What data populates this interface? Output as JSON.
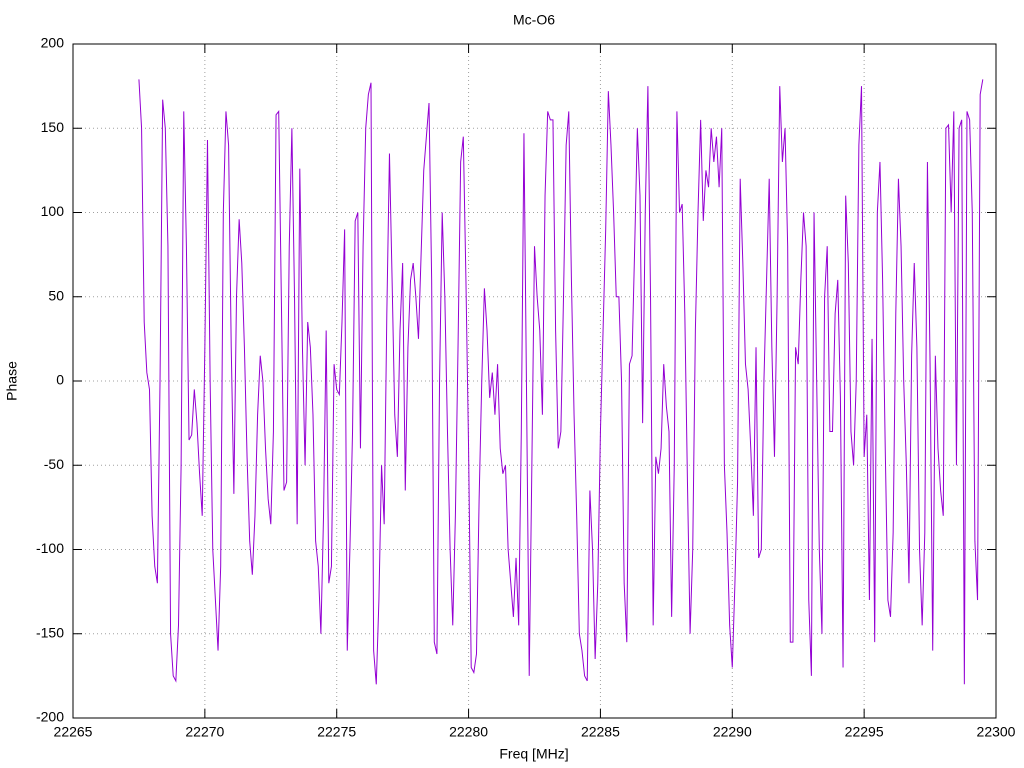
{
  "chart_data": {
    "type": "line",
    "title": "Mc-O6",
    "x_label": "Freq [MHz]",
    "y_label": "Phase",
    "color": "#9400d3",
    "grid": true,
    "xlim": [
      22265,
      22300
    ],
    "xticks": [
      22265,
      22270,
      22275,
      22280,
      22285,
      22290,
      22295,
      22300
    ],
    "ylim": [
      -200,
      200
    ],
    "yticks": [
      -200,
      -150,
      -100,
      -50,
      0,
      50,
      100,
      150,
      200
    ],
    "x": [
      22267.5,
      22267.6,
      22267.7,
      22267.8,
      22267.9,
      22268,
      22268.1,
      22268.2,
      22268.3,
      22268.4,
      22268.5,
      22268.6,
      22268.7,
      22268.8,
      22268.9,
      22269,
      22269.1,
      22269.2,
      22269.3,
      22269.4,
      22269.5,
      22269.6,
      22269.7,
      22269.8,
      22269.9,
      22270,
      22270.1,
      22270.2,
      22270.3,
      22270.4,
      22270.5,
      22270.6,
      22270.7,
      22270.8,
      22270.9,
      22271,
      22271.1,
      22271.2,
      22271.3,
      22271.4,
      22271.5,
      22271.6,
      22271.7,
      22271.8,
      22271.9,
      22272,
      22272.1,
      22272.2,
      22272.3,
      22272.4,
      22272.5,
      22272.6,
      22272.7,
      22272.8,
      22272.9,
      22273,
      22273.1,
      22273.2,
      22273.3,
      22273.4,
      22273.5,
      22273.6,
      22273.7,
      22273.8,
      22273.9,
      22274,
      22274.1,
      22274.2,
      22274.3,
      22274.4,
      22274.5,
      22274.6,
      22274.7,
      22274.8,
      22274.9,
      22275,
      22275.1,
      22275.2,
      22275.3,
      22275.4,
      22275.5,
      22275.6,
      22275.7,
      22275.8,
      22275.9,
      22276,
      22276.1,
      22276.2,
      22276.3,
      22276.4,
      22276.5,
      22276.6,
      22276.7,
      22276.8,
      22276.9,
      22277,
      22277.1,
      22277.2,
      22277.3,
      22277.4,
      22277.5,
      22277.6,
      22277.7,
      22277.8,
      22277.9,
      22278,
      22278.1,
      22278.2,
      22278.3,
      22278.4,
      22278.5,
      22278.6,
      22278.7,
      22278.8,
      22278.9,
      22279,
      22279.1,
      22279.2,
      22279.3,
      22279.4,
      22279.5,
      22279.6,
      22279.7,
      22279.8,
      22279.9,
      22280,
      22280.1,
      22280.2,
      22280.3,
      22280.4,
      22280.5,
      22280.6,
      22280.7,
      22280.8,
      22280.9,
      22281,
      22281.1,
      22281.2,
      22281.3,
      22281.4,
      22281.5,
      22281.6,
      22281.7,
      22281.8,
      22281.9,
      22282,
      22282.1,
      22282.2,
      22282.3,
      22282.4,
      22282.5,
      22282.6,
      22282.7,
      22282.8,
      22282.9,
      22283,
      22283.1,
      22283.2,
      22283.3,
      22283.4,
      22283.5,
      22283.6,
      22283.7,
      22283.8,
      22283.9,
      22284,
      22284.1,
      22284.2,
      22284.3,
      22284.4,
      22284.5,
      22284.6,
      22284.7,
      22284.8,
      22284.9,
      22285,
      22285.1,
      22285.2,
      22285.3,
      22285.4,
      22285.5,
      22285.6,
      22285.7,
      22285.8,
      22285.9,
      22286,
      22286.1,
      22286.2,
      22286.3,
      22286.4,
      22286.5,
      22286.6,
      22286.7,
      22286.8,
      22286.9,
      22287,
      22287.1,
      22287.2,
      22287.3,
      22287.4,
      22287.5,
      22287.6,
      22287.7,
      22287.8,
      22287.9,
      22288,
      22288.1,
      22288.2,
      22288.3,
      22288.4,
      22288.5,
      22288.6,
      22288.7,
      22288.8,
      22288.9,
      22289,
      22289.1,
      22289.2,
      22289.3,
      22289.4,
      22289.5,
      22289.6,
      22289.7,
      22289.8,
      22289.9,
      22290,
      22290.1,
      22290.2,
      22290.3,
      22290.4,
      22290.5,
      22290.6,
      22290.7,
      22290.8,
      22290.9,
      22291,
      22291.1,
      22291.2,
      22291.3,
      22291.4,
      22291.5,
      22291.6,
      22291.7,
      22291.8,
      22291.9,
      22292,
      22292.1,
      22292.2,
      22292.3,
      22292.4,
      22292.5,
      22292.6,
      22292.7,
      22292.8,
      22292.9,
      22293,
      22293.1,
      22293.2,
      22293.3,
      22293.4,
      22293.5,
      22293.6,
      22293.7,
      22293.8,
      22293.9,
      22294,
      22294.1,
      22294.2,
      22294.3,
      22294.4,
      22294.5,
      22294.6,
      22294.7,
      22294.8,
      22294.9,
      22295,
      22295.1,
      22295.2,
      22295.3,
      22295.4,
      22295.5,
      22295.6,
      22295.7,
      22295.8,
      22295.9,
      22296,
      22296.1,
      22296.2,
      22296.3,
      22296.4,
      22296.5,
      22296.6,
      22296.7,
      22296.8,
      22296.9,
      22297,
      22297.1,
      22297.2,
      22297.3,
      22297.4,
      22297.5,
      22297.6,
      22297.7,
      22297.8,
      22297.9,
      22298,
      22298.1,
      22298.2,
      22298.3,
      22298.4,
      22298.5,
      22298.6,
      22298.7,
      22298.8,
      22298.9,
      22299,
      22299.1,
      22299.2,
      22299.3,
      22299.4,
      22299.5
    ],
    "values": [
      179,
      150,
      35,
      5,
      -5,
      -80,
      -110,
      -120,
      0,
      167,
      150,
      80,
      -150,
      -175,
      -178,
      -145,
      -50,
      160,
      80,
      -35,
      -32,
      -5,
      -25,
      -55,
      -80,
      20,
      143,
      0,
      -100,
      -130,
      -160,
      -110,
      100,
      160,
      140,
      20,
      -67,
      50,
      96,
      70,
      20,
      -45,
      -95,
      -115,
      -80,
      -20,
      15,
      0,
      -40,
      -70,
      -85,
      -30,
      158,
      160,
      50,
      -65,
      -60,
      80,
      150,
      50,
      -85,
      126,
      20,
      -50,
      35,
      20,
      -20,
      -95,
      -110,
      -150,
      -80,
      30,
      -120,
      -110,
      10,
      -5,
      -8,
      35,
      90,
      -160,
      -100,
      -30,
      95,
      100,
      -40,
      80,
      150,
      170,
      177,
      -160,
      -180,
      -130,
      -50,
      -85,
      40,
      135,
      60,
      -20,
      -45,
      30,
      70,
      -65,
      20,
      60,
      70,
      50,
      25,
      75,
      125,
      145,
      165,
      60,
      -155,
      -162,
      0,
      100,
      50,
      -30,
      -100,
      -145,
      -80,
      20,
      130,
      145,
      60,
      -40,
      -170,
      -173,
      -162,
      -70,
      0,
      55,
      30,
      -10,
      5,
      -20,
      10,
      -40,
      -55,
      -50,
      -100,
      -120,
      -140,
      -105,
      -145,
      -30,
      147,
      -10,
      -175,
      -50,
      80,
      50,
      30,
      -20,
      110,
      160,
      155,
      155,
      30,
      -40,
      -30,
      50,
      140,
      160,
      60,
      -20,
      -80,
      -150,
      -160,
      -175,
      -178,
      -65,
      -100,
      -165,
      -120,
      -30,
      30,
      90,
      172,
      140,
      100,
      50,
      50,
      0,
      -120,
      -155,
      10,
      15,
      80,
      150,
      110,
      -25,
      100,
      175,
      50,
      -145,
      -45,
      -55,
      -40,
      10,
      -15,
      -30,
      -140,
      -50,
      160,
      100,
      105,
      40,
      -60,
      -150,
      -100,
      30,
      100,
      155,
      95,
      125,
      115,
      150,
      130,
      145,
      115,
      150,
      -50,
      -90,
      -145,
      -170,
      -120,
      -60,
      120,
      70,
      10,
      -5,
      -40,
      -80,
      20,
      -105,
      -100,
      0,
      60,
      120,
      20,
      -45,
      50,
      175,
      130,
      150,
      80,
      -155,
      -155,
      20,
      10,
      60,
      100,
      80,
      -130,
      -175,
      100,
      0,
      -100,
      -150,
      50,
      80,
      -30,
      -30,
      40,
      60,
      -10,
      -170,
      110,
      70,
      -30,
      -50,
      0,
      140,
      175,
      -45,
      -20,
      -130,
      25,
      -155,
      100,
      130,
      60,
      -40,
      -130,
      -140,
      -90,
      40,
      120,
      80,
      0,
      -50,
      -120,
      15,
      70,
      20,
      -100,
      -145,
      -90,
      130,
      10,
      -160,
      15,
      -40,
      -65,
      -80,
      150,
      152,
      100,
      160,
      -50,
      150,
      155,
      -180,
      160,
      155,
      100,
      -95,
      -130,
      170,
      179
    ]
  }
}
